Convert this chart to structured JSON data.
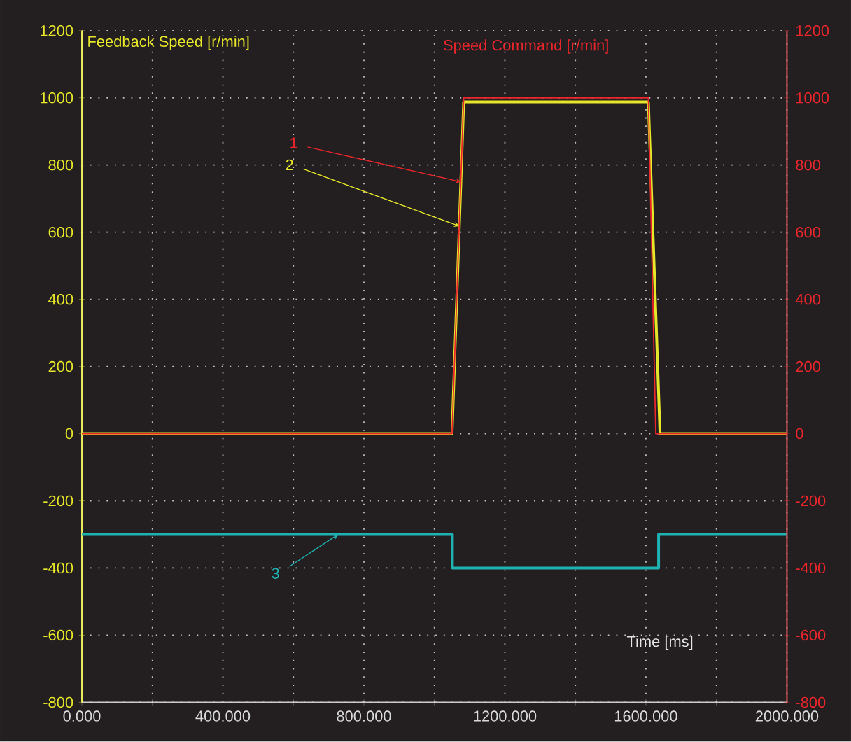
{
  "chart_data": {
    "type": "line",
    "xlabel": "Time [ms]",
    "xlim": [
      0,
      2000
    ],
    "xticks": [
      {
        "value": 0,
        "label": "0.000"
      },
      {
        "value": 200,
        "label": null
      },
      {
        "value": 400,
        "label": "400.000"
      },
      {
        "value": 600,
        "label": null
      },
      {
        "value": 800,
        "label": "800.000"
      },
      {
        "value": 1000,
        "label": null
      },
      {
        "value": 1200,
        "label": "1200.000"
      },
      {
        "value": 1400,
        "label": null
      },
      {
        "value": 1600,
        "label": "1600.000"
      },
      {
        "value": 1800,
        "label": null
      },
      {
        "value": 2000,
        "label": "2000.000"
      }
    ],
    "ylim": [
      -800,
      1200
    ],
    "yticks": [
      -800,
      -600,
      -400,
      -200,
      0,
      200,
      400,
      600,
      800,
      1000,
      1200
    ],
    "y2lim": [
      -800,
      1200
    ],
    "y2ticks": [
      -800,
      -600,
      -400,
      -200,
      0,
      200,
      400,
      600,
      800,
      1000,
      1200
    ],
    "grid": true,
    "series": [
      {
        "name": "Speed Command [r/min]",
        "color": "#e8262c",
        "axis": "y2",
        "x": [
          0,
          1050,
          1083,
          1607,
          1628,
          2000
        ],
        "values": [
          0,
          0,
          1000,
          1000,
          0,
          0
        ]
      },
      {
        "name": "Feedback Speed [r/min]",
        "color": "#e6e62a",
        "x": [
          0,
          1050,
          1083,
          1607,
          1640,
          2000
        ],
        "values": [
          0,
          0,
          988,
          988,
          0,
          0
        ]
      },
      {
        "color": "#20b2b2",
        "x": [
          0,
          1051,
          1051,
          1636,
          1636,
          2000
        ],
        "values": [
          -300,
          -300,
          -400,
          -400,
          -300,
          -300
        ]
      }
    ],
    "annotations": [
      {
        "text": "1",
        "x": 1075,
        "y": 750
      },
      {
        "text": "2",
        "x": 1071,
        "y": 618
      },
      {
        "text": "3",
        "x": 727,
        "y": -300
      }
    ]
  }
}
